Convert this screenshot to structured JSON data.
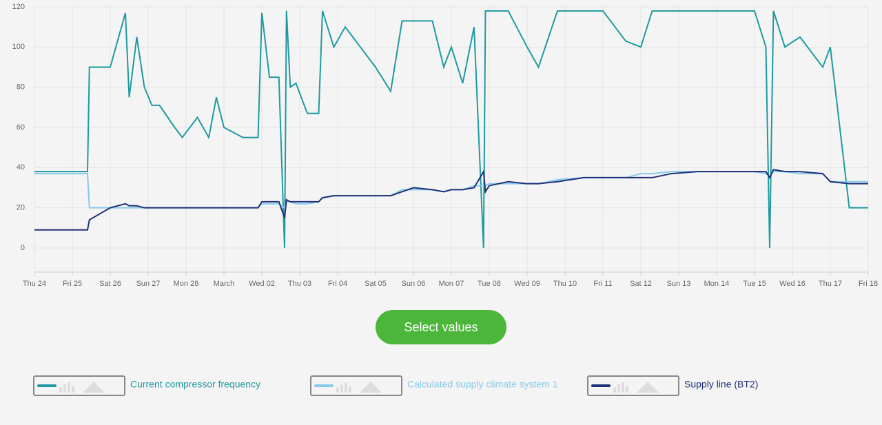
{
  "chart_data": {
    "type": "line",
    "x": [
      0,
      1.4,
      1.45,
      2.0,
      2.4,
      2.5,
      2.7,
      2.9,
      3.1,
      3.3,
      3.7,
      3.9,
      4.3,
      4.6,
      4.8,
      5.0,
      5.5,
      5.9,
      6.0,
      6.2,
      6.45,
      6.6,
      6.65,
      6.75,
      6.9,
      7.2,
      7.5,
      7.6,
      7.9,
      8.2,
      8.6,
      9.0,
      9.4,
      9.7,
      10.0,
      10.5,
      10.8,
      11.0,
      11.3,
      11.6,
      11.85,
      11.9,
      12.0,
      12.5,
      13.0,
      13.3,
      13.8,
      14.5,
      15.0,
      15.6,
      16.0,
      16.3,
      16.8,
      17.5,
      18.0,
      18.5,
      19.0,
      19.3,
      19.4,
      19.5,
      19.8,
      20.2,
      20.8,
      21.0,
      21.5,
      22
    ],
    "series": [
      {
        "name": "Current compressor frequency",
        "color": "#1e9aa0",
        "values": [
          38,
          38,
          90,
          90,
          117,
          75,
          105,
          80,
          71,
          71,
          60,
          55,
          65,
          55,
          75,
          60,
          55,
          55,
          117,
          85,
          85,
          0,
          118,
          80,
          82,
          67,
          67,
          118,
          100,
          110,
          100,
          90,
          78,
          113,
          113,
          113,
          90,
          100,
          82,
          110,
          0,
          118,
          118,
          118,
          100,
          90,
          118,
          118,
          118,
          103,
          100,
          118,
          118,
          118,
          118,
          118,
          118,
          100,
          0,
          118,
          100,
          105,
          90,
          100,
          20,
          20
        ]
      },
      {
        "name": "Calculated supply climate system 1",
        "color": "#86cbe8",
        "values": [
          37,
          37,
          20,
          20,
          20,
          20,
          20,
          20,
          20,
          20,
          20,
          20,
          20,
          20,
          20,
          20,
          20,
          20,
          22,
          22,
          22,
          20,
          23,
          23,
          22,
          22,
          23,
          25,
          26,
          26,
          26,
          26,
          26,
          29,
          29,
          29,
          28,
          29,
          29,
          31,
          31,
          31,
          32,
          32,
          32,
          32,
          34,
          35,
          35,
          35,
          37,
          37,
          38,
          38,
          38,
          38,
          38,
          37,
          36,
          38,
          38,
          37,
          37,
          33,
          33,
          33
        ]
      },
      {
        "name": "Supply line (BT2)",
        "color": "#1f3178",
        "values": [
          9,
          9,
          14,
          20,
          22,
          21,
          21,
          20,
          20,
          20,
          20,
          20,
          20,
          20,
          20,
          20,
          20,
          20,
          23,
          23,
          23,
          15,
          24,
          23,
          23,
          23,
          23,
          25,
          26,
          26,
          26,
          26,
          26,
          28,
          30,
          29,
          28,
          29,
          29,
          30,
          38,
          28,
          31,
          33,
          32,
          32,
          33,
          35,
          35,
          35,
          35,
          35,
          37,
          38,
          38,
          38,
          38,
          38,
          35,
          39,
          38,
          38,
          37,
          33,
          32,
          32
        ]
      }
    ],
    "xlim": [
      0,
      22
    ],
    "xticks": [
      {
        "value": 0,
        "label": "Thu 24"
      },
      {
        "value": 1,
        "label": "Fri 25"
      },
      {
        "value": 2,
        "label": "Sat 26"
      },
      {
        "value": 3,
        "label": "Sun 27"
      },
      {
        "value": 4,
        "label": "Mon 28"
      },
      {
        "value": 5,
        "label": "March"
      },
      {
        "value": 6,
        "label": "Wed 02"
      },
      {
        "value": 7,
        "label": "Thu 03"
      },
      {
        "value": 8,
        "label": "Fri 04"
      },
      {
        "value": 9,
        "label": "Sat 05"
      },
      {
        "value": 10,
        "label": "Sun 06"
      },
      {
        "value": 11,
        "label": "Mon 07"
      },
      {
        "value": 12,
        "label": "Tue 08"
      },
      {
        "value": 13,
        "label": "Wed 09"
      },
      {
        "value": 14,
        "label": "Thu 10"
      },
      {
        "value": 15,
        "label": "Fri 11"
      },
      {
        "value": 16,
        "label": "Sat 12"
      },
      {
        "value": 17,
        "label": "Sun 13"
      },
      {
        "value": 18,
        "label": "Mon 14"
      },
      {
        "value": 19,
        "label": "Tue 15"
      },
      {
        "value": 20,
        "label": "Wed 16"
      },
      {
        "value": 21,
        "label": "Thu 17"
      },
      {
        "value": 22,
        "label": "Fri 18"
      }
    ],
    "ylim": [
      -12,
      120
    ],
    "yticks": [
      0,
      20,
      40,
      60,
      80,
      100,
      120
    ],
    "grid": true,
    "button": "Select values"
  }
}
